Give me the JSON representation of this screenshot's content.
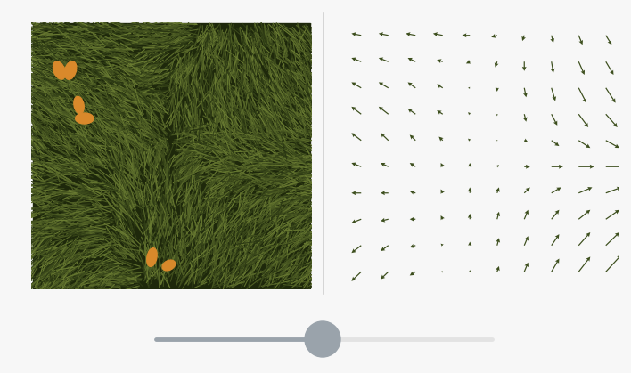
{
  "chart_data": {
    "type": "quiver",
    "tick_labels": false,
    "color": "#3d4f1e",
    "x": [
      0,
      1,
      2,
      3,
      4,
      5,
      6,
      7,
      8,
      9
    ],
    "y": [
      9,
      8,
      7,
      6,
      5,
      4,
      3,
      2,
      1,
      0
    ],
    "u": [
      [
        -0.5,
        -0.5,
        -0.5,
        -0.5,
        -0.4,
        -0.3,
        -0.1,
        0.1,
        0.2,
        0.3
      ],
      [
        -0.5,
        -0.5,
        -0.4,
        -0.3,
        -0.2,
        -0.1,
        0.0,
        0.1,
        0.3,
        0.4
      ],
      [
        -0.5,
        -0.5,
        -0.4,
        -0.3,
        -0.1,
        0.0,
        0.1,
        0.2,
        0.4,
        0.5
      ],
      [
        -0.5,
        -0.5,
        -0.4,
        -0.3,
        -0.1,
        0.0,
        0.1,
        0.3,
        0.5,
        0.6
      ],
      [
        -0.5,
        -0.4,
        -0.3,
        -0.2,
        -0.1,
        0.0,
        0.2,
        0.4,
        0.6,
        0.7
      ],
      [
        -0.5,
        -0.4,
        -0.3,
        -0.1,
        0.0,
        0.1,
        0.3,
        0.6,
        0.8,
        0.9
      ],
      [
        -0.5,
        -0.4,
        -0.3,
        -0.1,
        0.0,
        0.1,
        0.3,
        0.5,
        0.7,
        0.8
      ],
      [
        -0.5,
        -0.4,
        -0.3,
        -0.1,
        0.0,
        0.1,
        0.2,
        0.4,
        0.6,
        0.7
      ],
      [
        -0.5,
        -0.4,
        -0.3,
        -0.1,
        0.0,
        0.1,
        0.2,
        0.4,
        0.6,
        0.7
      ],
      [
        -0.5,
        -0.4,
        -0.3,
        -0.1,
        0.0,
        0.1,
        0.2,
        0.4,
        0.6,
        0.8
      ]
    ],
    "v": [
      [
        0.1,
        0.1,
        0.1,
        0.1,
        0.0,
        -0.1,
        -0.3,
        -0.4,
        -0.5,
        -0.5
      ],
      [
        0.2,
        0.2,
        0.2,
        0.1,
        -0.1,
        -0.3,
        -0.5,
        -0.6,
        -0.7,
        -0.7
      ],
      [
        0.3,
        0.3,
        0.3,
        0.2,
        0.0,
        -0.2,
        -0.5,
        -0.7,
        -0.8,
        -0.8
      ],
      [
        0.4,
        0.4,
        0.3,
        0.2,
        0.1,
        -0.1,
        -0.4,
        -0.6,
        -0.7,
        -0.7
      ],
      [
        0.4,
        0.4,
        0.3,
        0.2,
        0.1,
        0.0,
        -0.1,
        -0.3,
        -0.4,
        -0.4
      ],
      [
        0.2,
        0.2,
        0.2,
        0.2,
        0.2,
        0.1,
        0.0,
        0.0,
        0.0,
        0.0
      ],
      [
        0.0,
        0.0,
        0.1,
        0.2,
        0.3,
        0.3,
        0.3,
        0.3,
        0.3,
        0.3
      ],
      [
        -0.2,
        -0.1,
        0.0,
        0.2,
        0.3,
        0.4,
        0.5,
        0.5,
        0.5,
        0.5
      ],
      [
        -0.4,
        -0.3,
        -0.1,
        0.1,
        0.2,
        0.4,
        0.5,
        0.6,
        0.7,
        0.7
      ],
      [
        -0.5,
        -0.4,
        -0.2,
        0.0,
        0.1,
        0.3,
        0.5,
        0.7,
        0.8,
        0.9
      ]
    ]
  }
}
